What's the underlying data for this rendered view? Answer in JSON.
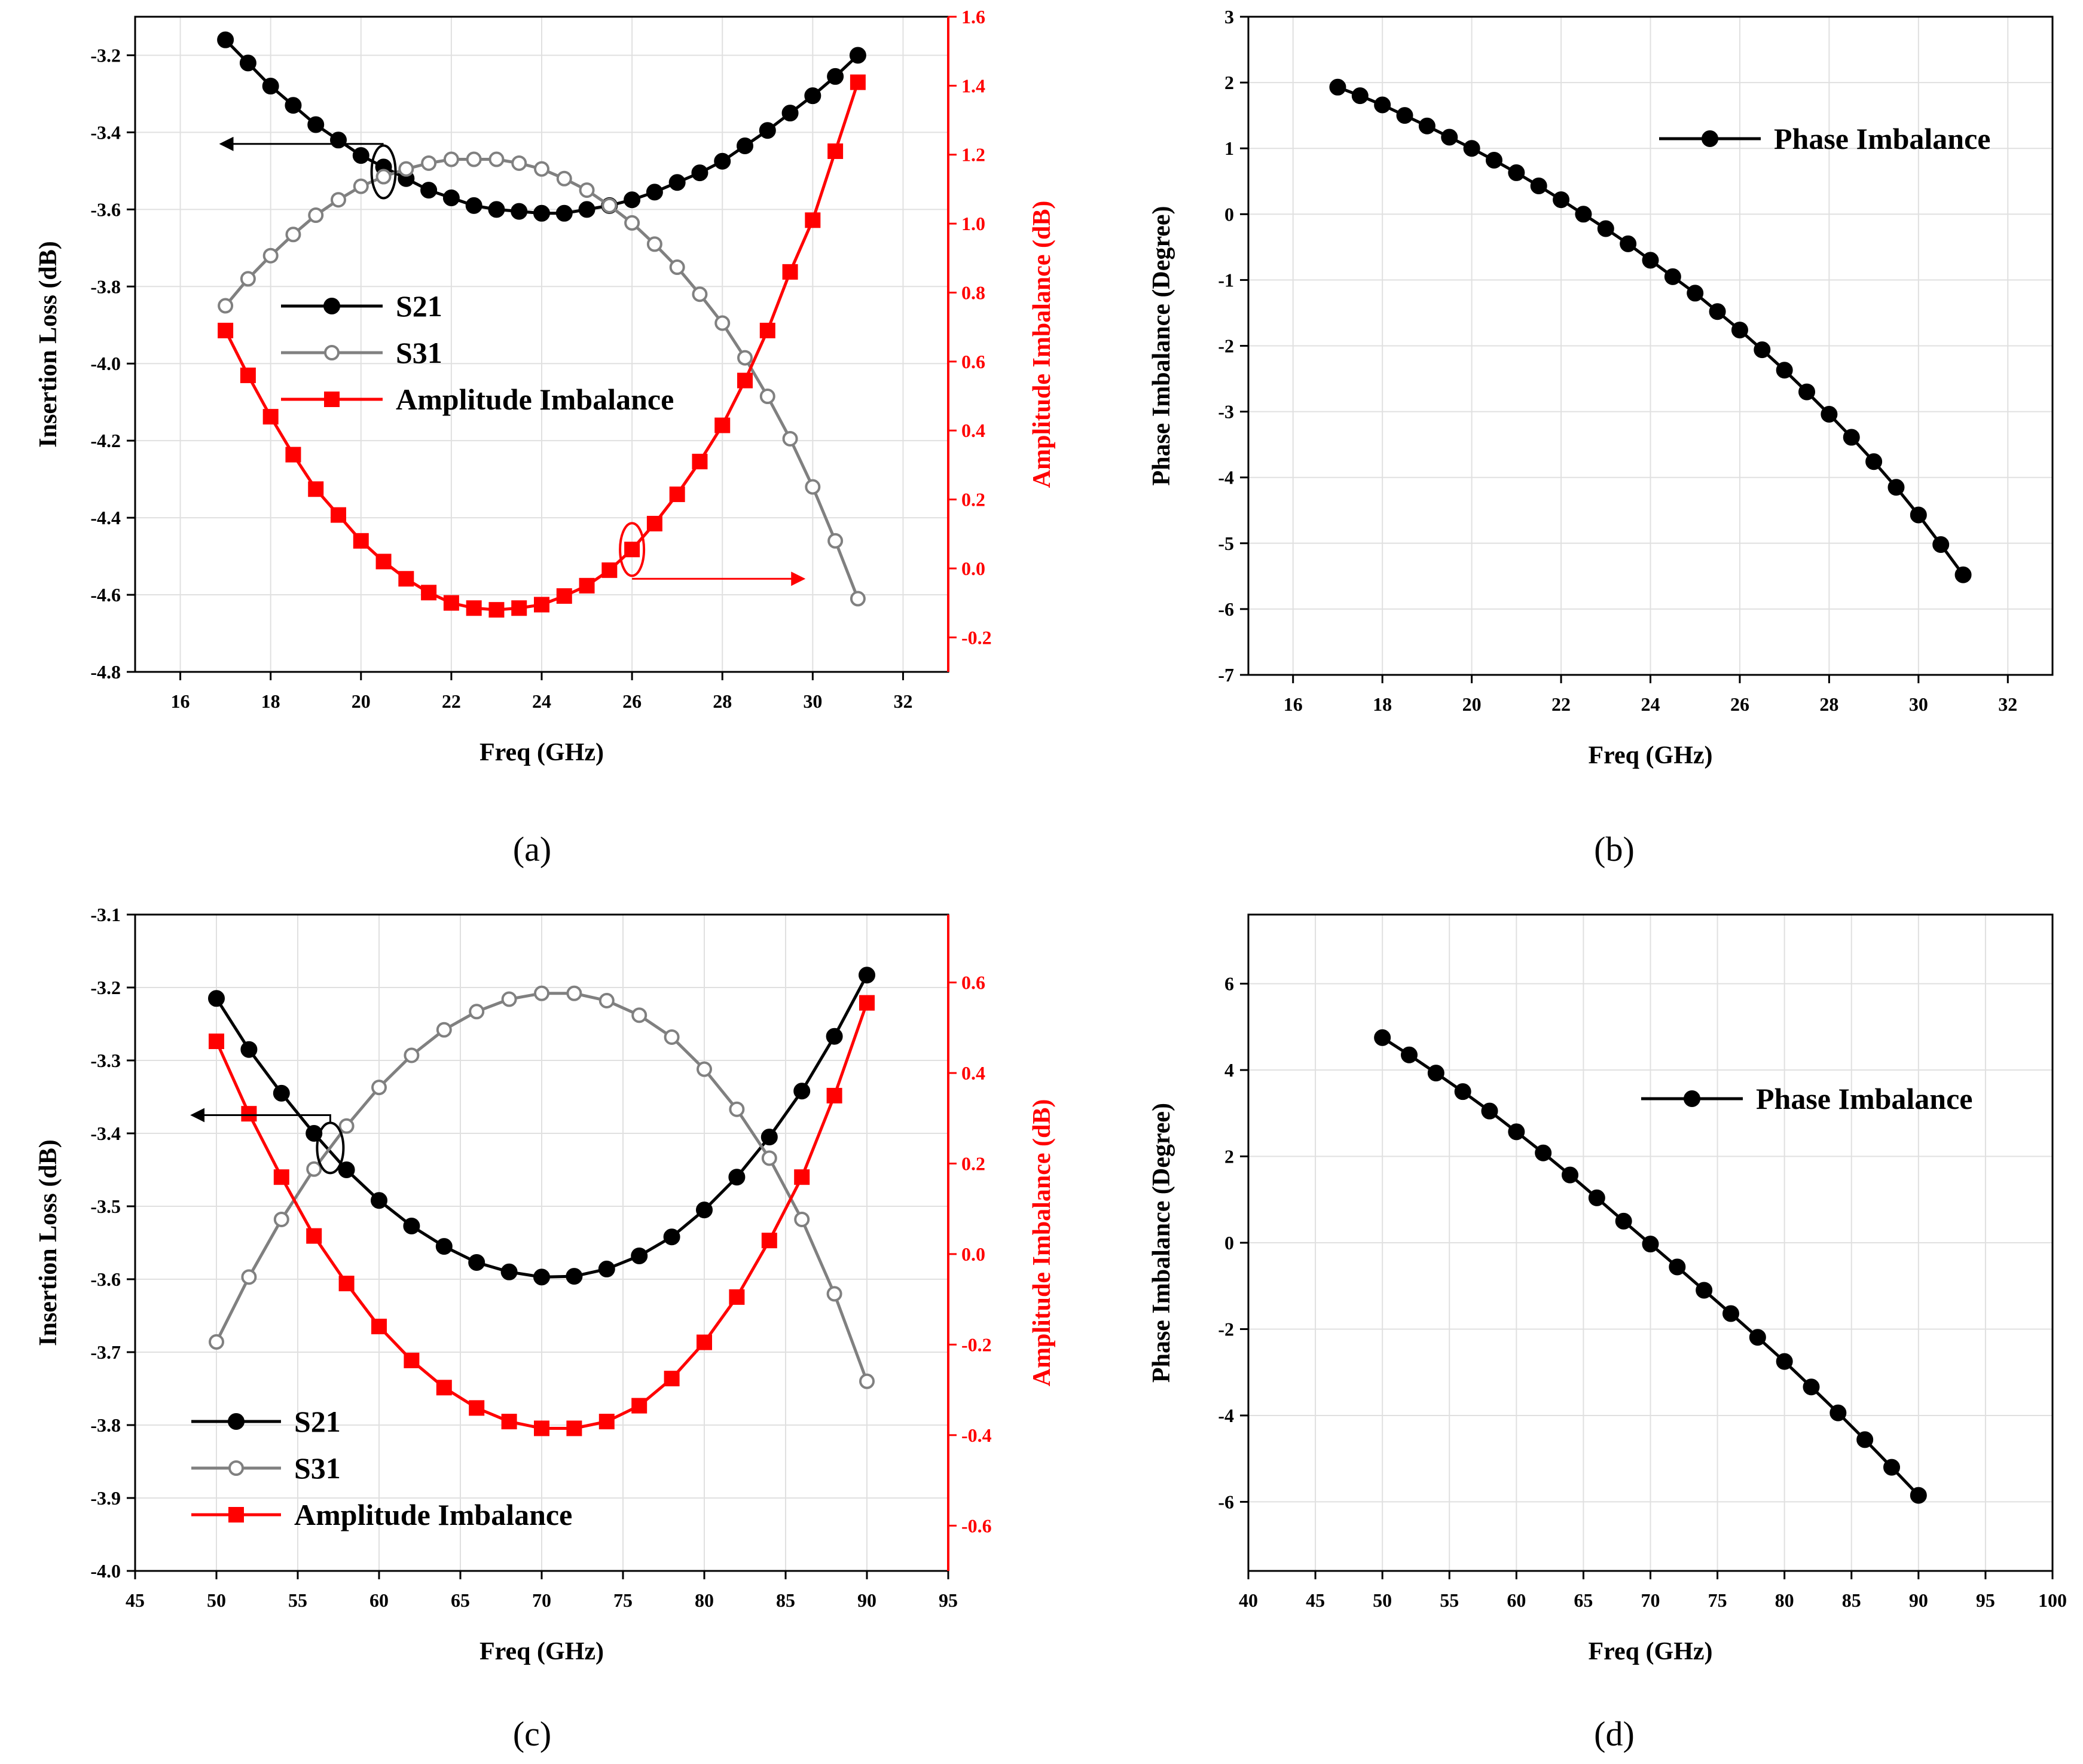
{
  "colors": {
    "black": "#000000",
    "gray": "#808080",
    "red": "#ff0000",
    "grid": "#e0e0e0"
  },
  "chart_data": [
    {
      "id": "a",
      "type": "line",
      "panel_label": "(a)",
      "xlabel": "Freq (GHz)",
      "ylabel": "Insertion Loss (dB)",
      "y2label": "Amplitude Imbalance (dB)",
      "xlim": [
        15,
        33
      ],
      "xticks": [
        16,
        18,
        20,
        22,
        24,
        26,
        28,
        30,
        32
      ],
      "ylim": [
        -4.8,
        -3.1
      ],
      "yticks": [
        -4.8,
        -4.6,
        -4.4,
        -4.2,
        -4.0,
        -3.8,
        -3.6,
        -3.4,
        -3.2
      ],
      "ytick_labels": [
        "-4.8",
        "-4.6",
        "-4.4",
        "-4.2",
        "-4.0",
        "-3.8",
        "-3.6",
        "-3.4",
        "-3.2"
      ],
      "y2lim": [
        -0.3,
        1.6
      ],
      "y2ticks": [
        -0.2,
        0.0,
        0.2,
        0.4,
        0.6,
        0.8,
        1.0,
        1.2,
        1.4,
        1.6
      ],
      "y2tick_labels": [
        "-0.2",
        "0.0",
        "0.2",
        "0.4",
        "0.6",
        "0.8",
        "1.0",
        "1.2",
        "1.4",
        "1.6"
      ],
      "x": [
        17,
        17.5,
        18,
        18.5,
        19,
        19.5,
        20,
        20.5,
        21,
        21.5,
        22,
        22.5,
        23,
        23.5,
        24,
        24.5,
        25,
        25.5,
        26,
        26.5,
        27,
        27.5,
        28,
        28.5,
        29,
        29.5,
        30,
        30.5,
        31
      ],
      "series": [
        {
          "name": "S21",
          "axis": "left",
          "marker": "circle-filled",
          "color": "#000000",
          "values": [
            -3.16,
            -3.22,
            -3.28,
            -3.33,
            -3.38,
            -3.42,
            -3.46,
            -3.49,
            -3.52,
            -3.55,
            -3.57,
            -3.59,
            -3.6,
            -3.605,
            -3.61,
            -3.61,
            -3.6,
            -3.59,
            -3.575,
            -3.555,
            -3.53,
            -3.505,
            -3.475,
            -3.435,
            -3.395,
            -3.35,
            -3.305,
            -3.255,
            -3.2
          ]
        },
        {
          "name": "S31",
          "axis": "left",
          "marker": "circle-open",
          "color": "#808080",
          "values": [
            -3.85,
            -3.78,
            -3.72,
            -3.665,
            -3.615,
            -3.575,
            -3.54,
            -3.515,
            -3.495,
            -3.48,
            -3.47,
            -3.47,
            -3.47,
            -3.48,
            -3.495,
            -3.52,
            -3.55,
            -3.59,
            -3.635,
            -3.69,
            -3.75,
            -3.82,
            -3.895,
            -3.985,
            -4.085,
            -4.195,
            -4.32,
            -4.46,
            -4.61
          ]
        },
        {
          "name": "Amplitude Imbalance",
          "axis": "right",
          "marker": "square-filled",
          "color": "#ff0000",
          "values": [
            0.69,
            0.56,
            0.44,
            0.33,
            0.23,
            0.155,
            0.08,
            0.02,
            -0.03,
            -0.07,
            -0.1,
            -0.115,
            -0.12,
            -0.115,
            -0.105,
            -0.08,
            -0.05,
            -0.005,
            0.055,
            0.13,
            0.215,
            0.31,
            0.415,
            0.545,
            0.69,
            0.86,
            1.01,
            1.21,
            1.41
          ]
        }
      ],
      "legend": {
        "position": "center-left",
        "entries": [
          "S21",
          "S31",
          "Amplitude Imbalance"
        ]
      }
    },
    {
      "id": "b",
      "type": "line",
      "panel_label": "(b)",
      "xlabel": "Freq (GHz)",
      "ylabel": "Phase Imbalance (Degree)",
      "xlim": [
        15,
        33
      ],
      "xticks": [
        16,
        18,
        20,
        22,
        24,
        26,
        28,
        30,
        32
      ],
      "ylim": [
        -7,
        3
      ],
      "yticks": [
        -7,
        -6,
        -5,
        -4,
        -3,
        -2,
        -1,
        0,
        1,
        2,
        3
      ],
      "ytick_labels": [
        "-7",
        "-6",
        "-5",
        "-4",
        "-3",
        "-2",
        "-1",
        "0",
        "1",
        "2",
        "3"
      ],
      "x": [
        17,
        17.5,
        18,
        18.5,
        19,
        19.5,
        20,
        20.5,
        21,
        21.5,
        22,
        22.5,
        23,
        23.5,
        24,
        24.5,
        25,
        25.5,
        26,
        26.5,
        27,
        27.5,
        28,
        28.5,
        29,
        29.5,
        30,
        30.5,
        31
      ],
      "series": [
        {
          "name": "Phase Imbalance",
          "axis": "left",
          "marker": "circle-filled",
          "color": "#000000",
          "values": [
            1.93,
            1.8,
            1.66,
            1.5,
            1.34,
            1.17,
            1.0,
            0.82,
            0.63,
            0.43,
            0.22,
            0.0,
            -0.22,
            -0.45,
            -0.7,
            -0.95,
            -1.2,
            -1.48,
            -1.76,
            -2.06,
            -2.37,
            -2.7,
            -3.04,
            -3.39,
            -3.76,
            -4.15,
            -4.57,
            -5.02,
            -5.48
          ]
        }
      ],
      "legend": {
        "position": "top-right",
        "entries": [
          "Phase Imbalance"
        ]
      }
    },
    {
      "id": "c",
      "type": "line",
      "panel_label": "(c)",
      "xlabel": "Freq (GHz)",
      "ylabel": "Insertion Loss (dB)",
      "y2label": "Amplitude Imbalance (dB)",
      "xlim": [
        45,
        95
      ],
      "xticks": [
        45,
        50,
        55,
        60,
        65,
        70,
        75,
        80,
        85,
        90,
        95
      ],
      "ylim": [
        -4.0,
        -3.1
      ],
      "yticks": [
        -4.0,
        -3.9,
        -3.8,
        -3.7,
        -3.6,
        -3.5,
        -3.4,
        -3.3,
        -3.2,
        -3.1
      ],
      "ytick_labels": [
        "-4.0",
        "-3.9",
        "-3.8",
        "-3.7",
        "-3.6",
        "-3.5",
        "-3.4",
        "-3.3",
        "-3.2",
        "-3.1"
      ],
      "y2lim": [
        -0.7,
        0.75
      ],
      "y2ticks": [
        -0.6,
        -0.4,
        -0.2,
        0.0,
        0.2,
        0.4,
        0.6
      ],
      "y2tick_labels": [
        "-0.6",
        "-0.4",
        "-0.2",
        "0.0",
        "0.2",
        "0.4",
        "0.6"
      ],
      "x": [
        50,
        52,
        54,
        56,
        58,
        60,
        62,
        64,
        66,
        68,
        70,
        72,
        74,
        76,
        78,
        80,
        82,
        84,
        86,
        88,
        90
      ],
      "series": [
        {
          "name": "S21",
          "axis": "left",
          "marker": "circle-filled",
          "color": "#000000",
          "values": [
            -3.215,
            -3.285,
            -3.345,
            -3.4,
            -3.45,
            -3.492,
            -3.527,
            -3.555,
            -3.577,
            -3.59,
            -3.597,
            -3.596,
            -3.586,
            -3.568,
            -3.542,
            -3.505,
            -3.46,
            -3.405,
            -3.342,
            -3.267,
            -3.183
          ]
        },
        {
          "name": "S31",
          "axis": "left",
          "marker": "circle-open",
          "color": "#808080",
          "values": [
            -3.686,
            -3.597,
            -3.518,
            -3.449,
            -3.39,
            -3.337,
            -3.293,
            -3.258,
            -3.233,
            -3.216,
            -3.208,
            -3.208,
            -3.218,
            -3.238,
            -3.268,
            -3.312,
            -3.367,
            -3.434,
            -3.518,
            -3.62,
            -3.74
          ]
        },
        {
          "name": "Amplitude Imbalance",
          "axis": "right",
          "marker": "square-filled",
          "color": "#ff0000",
          "values": [
            0.47,
            0.31,
            0.17,
            0.04,
            -0.065,
            -0.16,
            -0.235,
            -0.295,
            -0.34,
            -0.37,
            -0.385,
            -0.385,
            -0.37,
            -0.335,
            -0.275,
            -0.195,
            -0.095,
            0.03,
            0.17,
            0.35,
            0.555
          ]
        }
      ],
      "legend": {
        "position": "bottom-left",
        "entries": [
          "S21",
          "S31",
          "Amplitude Imbalance"
        ]
      }
    },
    {
      "id": "d",
      "type": "line",
      "panel_label": "(d)",
      "xlabel": "Freq (GHz)",
      "ylabel": "Phase Imbalance (Degree)",
      "xlim": [
        40,
        100
      ],
      "xticks": [
        40,
        45,
        50,
        55,
        60,
        65,
        70,
        75,
        80,
        85,
        90,
        95,
        100
      ],
      "ylim": [
        -7.6,
        7.6
      ],
      "yticks": [
        -6,
        -4,
        -2,
        0,
        2,
        4,
        6
      ],
      "ytick_labels": [
        "-6",
        "-4",
        "-2",
        "0",
        "2",
        "4",
        "6"
      ],
      "x": [
        50,
        52,
        54,
        56,
        58,
        60,
        62,
        64,
        66,
        68,
        70,
        72,
        74,
        76,
        78,
        80,
        82,
        84,
        86,
        88,
        90
      ],
      "series": [
        {
          "name": "Phase Imbalance",
          "axis": "left",
          "marker": "circle-filled",
          "color": "#000000",
          "values": [
            4.75,
            4.35,
            3.93,
            3.5,
            3.05,
            2.57,
            2.08,
            1.57,
            1.04,
            0.5,
            -0.03,
            -0.56,
            -1.1,
            -1.64,
            -2.19,
            -2.75,
            -3.34,
            -3.94,
            -4.56,
            -5.2,
            -5.85
          ]
        }
      ],
      "legend": {
        "position": "top-right",
        "entries": [
          "Phase Imbalance"
        ]
      }
    }
  ]
}
